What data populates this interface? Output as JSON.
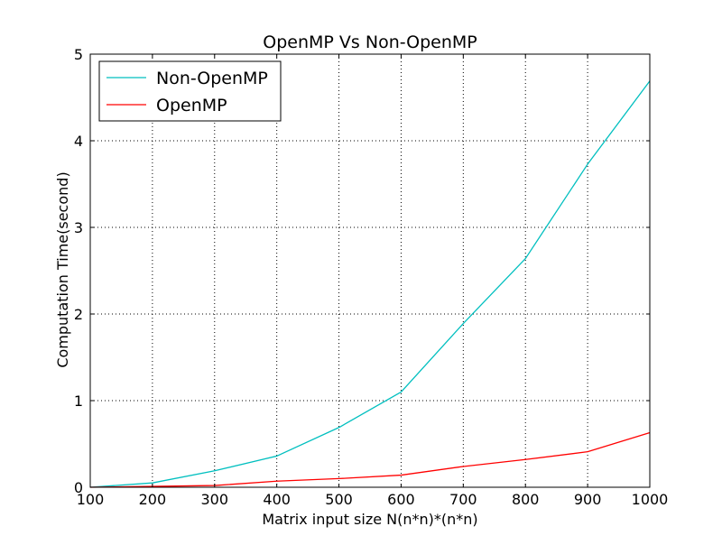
{
  "chart_data": {
    "type": "line",
    "title": "OpenMP Vs Non-OpenMP",
    "xlabel": "Matrix input size N(n*n)*(n*n)",
    "ylabel": "Computation Time(second)",
    "xlim": [
      100,
      1000
    ],
    "ylim": [
      0,
      5
    ],
    "grid": true,
    "legend_position": "top-left",
    "x": [
      100,
      200,
      300,
      400,
      500,
      600,
      700,
      800,
      900,
      1000
    ],
    "x_ticks": [
      "100",
      "200",
      "300",
      "400",
      "500",
      "600",
      "700",
      "800",
      "900",
      "1000"
    ],
    "y_ticks": [
      "0",
      "1",
      "2",
      "3",
      "4",
      "5"
    ],
    "series": [
      {
        "name": "Non-OpenMP",
        "color": "#00bfbf",
        "values": [
          0.0,
          0.05,
          0.19,
          0.36,
          0.69,
          1.1,
          1.89,
          2.64,
          3.73,
          4.69
        ]
      },
      {
        "name": "OpenMP",
        "color": "#ff0000",
        "values": [
          0.0,
          0.01,
          0.02,
          0.07,
          0.1,
          0.14,
          0.24,
          0.32,
          0.41,
          0.63
        ]
      }
    ]
  }
}
